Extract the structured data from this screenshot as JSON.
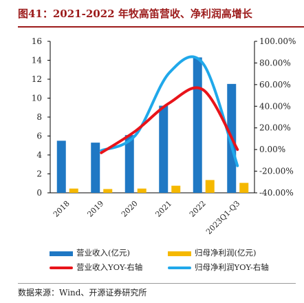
{
  "figure_title": "图41：2021-2022 年牧高笛营收、净利润高增长",
  "source": "数据来源：Wind、开源证券研究所",
  "colors": {
    "revenue": "#1f78c4",
    "profit": "#f5b800",
    "revenue_yoy": "#e8141a",
    "profit_yoy": "#20a8ea",
    "title": "#9c1b1b"
  },
  "chart_data": {
    "type": "bar",
    "categories": [
      "2018",
      "2019",
      "2020",
      "2021",
      "2022",
      "2023Q1-Q3"
    ],
    "series": [
      {
        "name": "营业收入(亿元)",
        "type": "bar",
        "axis": "left",
        "values": [
          5.5,
          5.3,
          6.1,
          9.2,
          14.3,
          11.5
        ]
      },
      {
        "name": "归母净利润(亿元)",
        "type": "bar",
        "axis": "left",
        "values": [
          0.45,
          0.4,
          0.45,
          0.75,
          1.35,
          1.05
        ]
      },
      {
        "name": "营业收入YOY-右轴",
        "type": "line",
        "axis": "right",
        "values": [
          null,
          -0.03,
          0.17,
          0.43,
          0.55,
          0.0
        ]
      },
      {
        "name": "归母净利润YOY-右轴",
        "type": "line",
        "axis": "right",
        "values": [
          null,
          -0.01,
          0.13,
          0.71,
          0.79,
          -0.15
        ]
      }
    ],
    "y_left": {
      "min": 0,
      "max": 16,
      "ticks": [
        "0",
        "2",
        "4",
        "6",
        "8",
        "10",
        "12",
        "14",
        "16"
      ]
    },
    "y_right": {
      "min": -0.4,
      "max": 1.0,
      "ticks": [
        "-40.00%",
        "-20.00%",
        "0.00%",
        "20.00%",
        "40.00%",
        "60.00%",
        "80.00%",
        "100.00%"
      ]
    },
    "grid": false,
    "legend_position": "bottom"
  }
}
